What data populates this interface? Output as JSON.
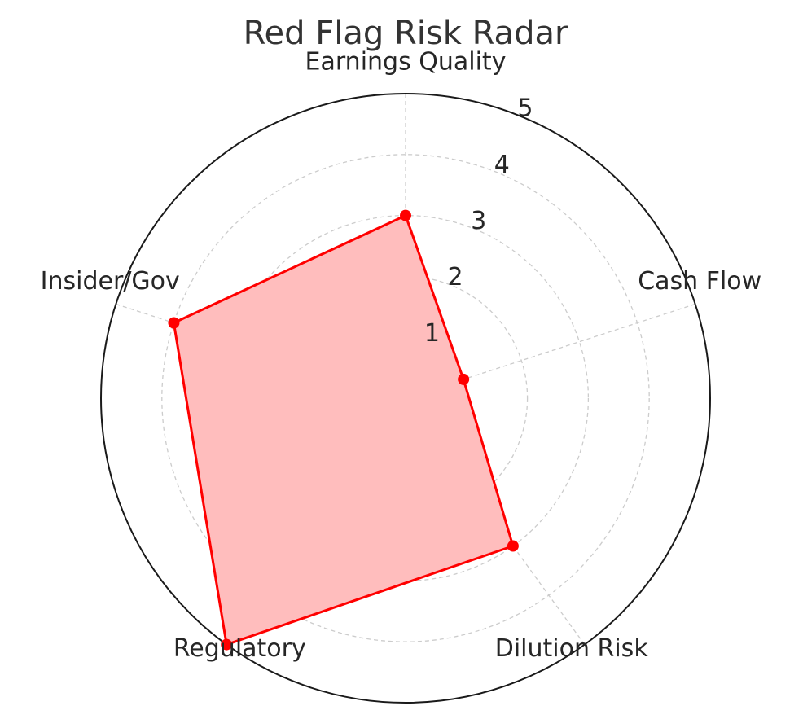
{
  "chart_data": {
    "type": "radar",
    "title": "Red Flag Risk Radar",
    "categories": [
      "Earnings Quality",
      "Cash Flow",
      "Dilution Risk",
      "Regulatory",
      "Insider/Gov"
    ],
    "series": [
      {
        "values": [
          3,
          1,
          3,
          5,
          4
        ]
      }
    ],
    "rlim": [
      0,
      5
    ],
    "rticks": [
      "1",
      "2",
      "3",
      "4",
      "5"
    ],
    "grid": true,
    "colors": {
      "line": "#ff0000",
      "fill": "#ffbdbd",
      "grid": "#cccccc",
      "frame": "#1a1a1a"
    }
  }
}
